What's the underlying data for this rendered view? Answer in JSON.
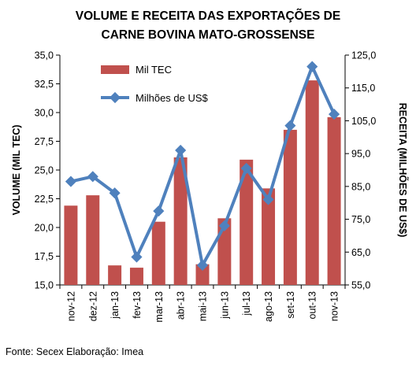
{
  "chart_data": {
    "type": "bar",
    "title_lines": [
      "VOLUME E RECEITA DAS EXPORTAÇÕES DE",
      "CARNE BOVINA MATO-GROSSENSE"
    ],
    "categories": [
      "nov-12",
      "dez-12",
      "jan-13",
      "fev-13",
      "mar-13",
      "abr-13",
      "mai-13",
      "jun-13",
      "jul-13",
      "ago-13",
      "set-13",
      "out-13",
      "nov-13"
    ],
    "ylabel": "VOLUME (MIL TEC)",
    "ylabel_right": "RECEITA (MILHÕES DE US$)",
    "ylim": [
      15.0,
      35.0
    ],
    "yticks": [
      "15,0",
      "17,5",
      "20,0",
      "22,5",
      "25,0",
      "27,5",
      "30,0",
      "32,5",
      "35,0"
    ],
    "ylim_right": [
      55.0,
      125.0
    ],
    "yticks_right": [
      "55,0",
      "65,0",
      "75,0",
      "85,0",
      "95,0",
      "105,0",
      "115,0",
      "125,0"
    ],
    "series": [
      {
        "name": "Mil TEC",
        "type": "bar",
        "axis": "left",
        "color": "#c0504d",
        "values": [
          21.9,
          22.8,
          16.7,
          16.5,
          20.5,
          26.1,
          16.8,
          20.8,
          25.9,
          23.4,
          28.5,
          32.8,
          29.6
        ]
      },
      {
        "name": "Milhões de US$",
        "type": "line",
        "axis": "right",
        "color": "#4f81bd",
        "values": [
          86.5,
          88.0,
          83.0,
          63.5,
          77.5,
          96.0,
          61.0,
          73.0,
          90.5,
          81.0,
          103.5,
          121.5,
          107.0
        ]
      }
    ],
    "legend_position": "top-left",
    "grid": false
  },
  "footer": {
    "text": "Fonte: Secex  Elaboração: Imea"
  }
}
